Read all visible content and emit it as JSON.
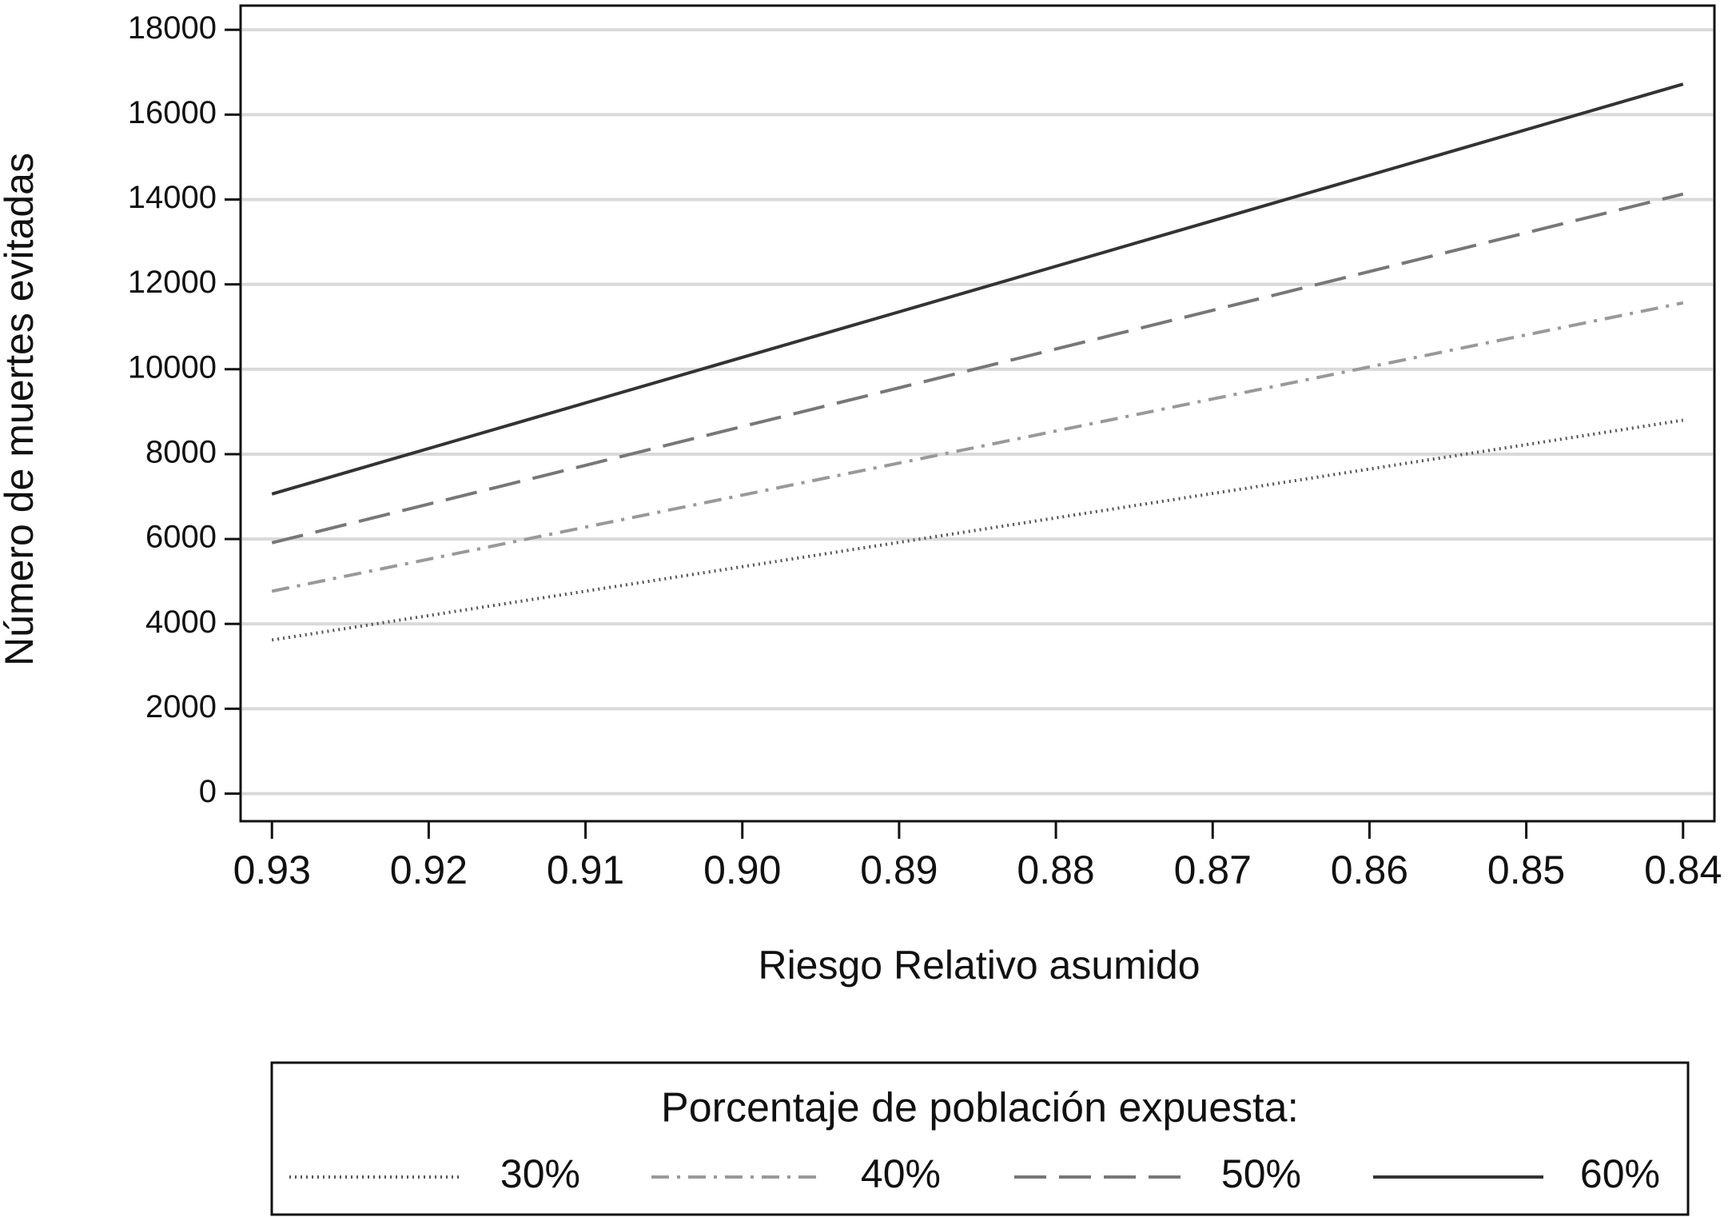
{
  "chart_data": {
    "type": "line",
    "x_label": "Riesgo Relativo asumido",
    "y_label": "Número de muertes evitadas",
    "legend_title": "Porcentaje de población expuesta:",
    "legend_position": "bottom",
    "grid": true,
    "x": [
      0.93,
      0.92,
      0.91,
      0.9,
      0.89,
      0.88,
      0.87,
      0.86,
      0.85,
      0.84
    ],
    "xlim": [
      0.932,
      0.838
    ],
    "xticks": [
      {
        "value": 0.93,
        "label": "0.93"
      },
      {
        "value": 0.92,
        "label": "0.92"
      },
      {
        "value": 0.91,
        "label": "0.91"
      },
      {
        "value": 0.9,
        "label": "0.90"
      },
      {
        "value": 0.89,
        "label": "0.89"
      },
      {
        "value": 0.88,
        "label": "0.88"
      },
      {
        "value": 0.87,
        "label": "0.87"
      },
      {
        "value": 0.86,
        "label": "0.86"
      },
      {
        "value": 0.85,
        "label": "0.85"
      },
      {
        "value": 0.84,
        "label": "0.84"
      }
    ],
    "ylim": [
      -650,
      18570
    ],
    "yticks": [
      0,
      2000,
      4000,
      6000,
      8000,
      10000,
      12000,
      14000,
      16000,
      18000
    ],
    "series": [
      {
        "name": "30%",
        "color": "#555555",
        "style": "dotted",
        "values": [
          3620,
          4196,
          4771,
          5347,
          5922,
          6498,
          7073,
          7649,
          8224,
          8800
        ]
      },
      {
        "name": "40%",
        "color": "#999999",
        "style": "dashdot",
        "values": [
          4770,
          5525,
          6280,
          7035,
          7790,
          8545,
          9300,
          10055,
          10810,
          11565
        ]
      },
      {
        "name": "50%",
        "color": "#777777",
        "style": "longdash",
        "values": [
          5910,
          6823,
          7737,
          8650,
          9563,
          10477,
          11390,
          12303,
          13217,
          14130
        ]
      },
      {
        "name": "60%",
        "color": "#333333",
        "style": "solid",
        "values": [
          7060,
          8133,
          9207,
          10280,
          11353,
          12427,
          13500,
          14573,
          15647,
          16720
        ]
      }
    ]
  }
}
